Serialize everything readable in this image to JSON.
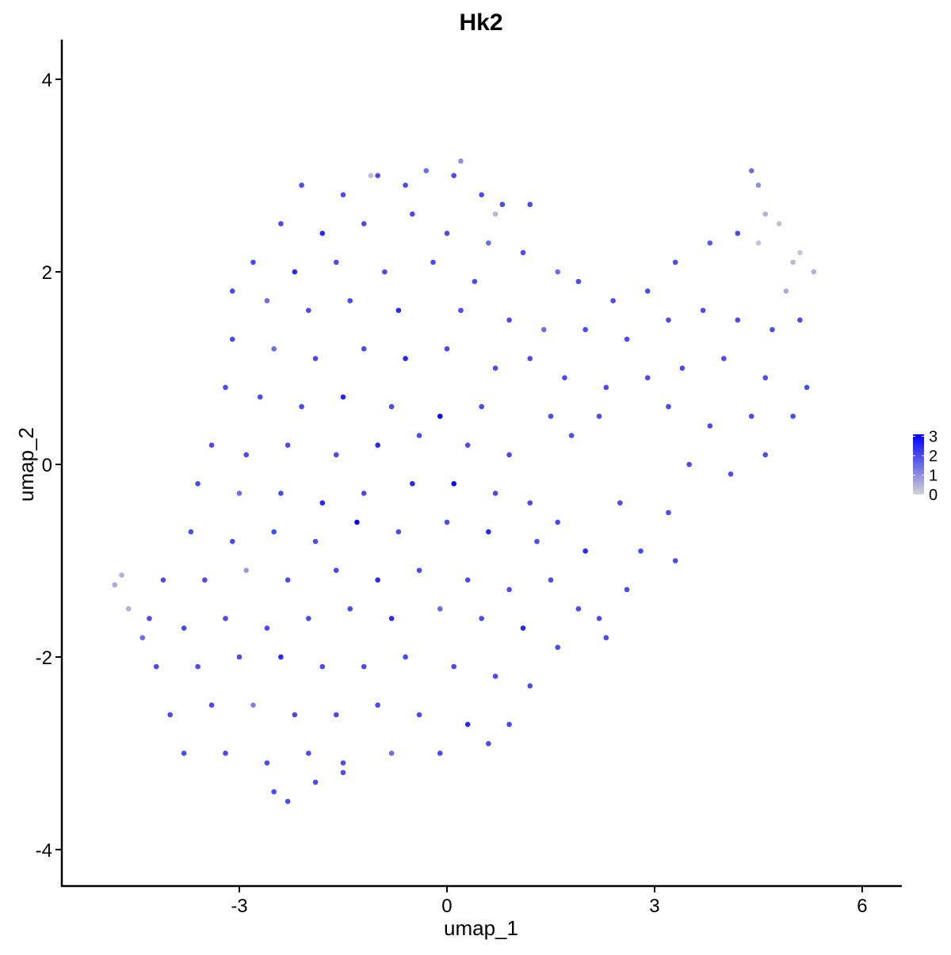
{
  "chart_data": {
    "type": "scatter",
    "title": "Hk2",
    "x_label": "umap_1",
    "y_label": "umap_2",
    "xlim": [
      -5.565,
      6.573
    ],
    "xticks": [
      -3,
      0,
      3,
      6
    ],
    "ylim": [
      -4.379,
      4.412
    ],
    "yticks": [
      -4,
      -2,
      0,
      2,
      4
    ],
    "color_low": "#d3d3d3",
    "color_high": "#0000ff",
    "color_range": [
      0,
      3.1
    ],
    "colorbar_ticks": [
      0,
      1,
      2,
      3
    ],
    "x": [
      -2.1,
      -1.5,
      -1.0,
      -0.6,
      -0.3,
      0.1,
      0.2,
      0.5,
      0.8,
      1.2,
      -1.1,
      0.7,
      -2.4,
      -1.8,
      -1.2,
      -0.5,
      0,
      0.6,
      1.1,
      -2.8,
      -2.2,
      -1.6,
      -0.9,
      -0.2,
      0.4,
      1.6,
      -3.1,
      -2.6,
      -2.0,
      -1.4,
      -0.7,
      0.2,
      0.9,
      1.4,
      -3.1,
      -2.5,
      -1.9,
      -1.2,
      -0.6,
      0,
      0.7,
      1.2,
      -3.2,
      -2.7,
      -2.1,
      -1.5,
      -0.8,
      -0.1,
      0.5,
      -3.4,
      -2.9,
      -2.3,
      -1.6,
      -1.0,
      -0.4,
      0.3,
      0.9,
      -3.6,
      -3.0,
      -2.4,
      -1.8,
      -1.2,
      -0.5,
      0.1,
      0.7,
      1.2,
      -3.7,
      -3.1,
      -2.5,
      -1.9,
      -1.3,
      -0.7,
      0,
      0.6,
      1.3,
      -4.1,
      -3.5,
      -2.9,
      -2.3,
      -1.6,
      -1.0,
      -0.4,
      0.3,
      0.9,
      1.5,
      -4.3,
      -3.8,
      -3.2,
      -2.6,
      -2.0,
      -1.4,
      -0.8,
      -0.1,
      0.5,
      1.1,
      1.6,
      -4.2,
      -3.6,
      -3.0,
      -2.4,
      -1.8,
      -1.2,
      -0.6,
      0.1,
      0.7,
      1.2,
      -4.0,
      -3.4,
      -2.8,
      -2.2,
      -1.6,
      -1.0,
      -0.4,
      0.3,
      0.9,
      -3.8,
      -3.2,
      -2.6,
      -2.0,
      -1.5,
      -0.8,
      -0.1,
      0.6,
      -2.5,
      -2.3,
      -1.9,
      -1.5,
      -4.8,
      -4.7,
      -4.6,
      -4.4,
      1.9,
      2.4,
      2.9,
      3.3,
      3.8,
      4.2,
      4.6,
      4.5,
      4.8,
      5.1,
      5.3,
      4.9,
      4.5,
      5.0,
      4.4,
      2.0,
      2.6,
      3.2,
      3.7,
      4.2,
      4.7,
      5.1,
      1.7,
      2.3,
      2.9,
      3.4,
      4.0,
      4.6,
      5.2,
      2.2,
      3.2,
      3.8,
      4.4,
      5.0,
      3.5,
      4.1,
      4.6,
      1.8,
      3.2,
      2.8,
      3.3,
      2.6,
      2.2,
      2.3,
      1.9,
      1.6,
      2.0,
      2.5,
      1.5
    ],
    "y": [
      2.9,
      2.8,
      3.0,
      2.9,
      3.05,
      3.0,
      3.15,
      2.8,
      2.7,
      2.7,
      3.0,
      2.6,
      2.5,
      2.4,
      2.5,
      2.6,
      2.4,
      2.3,
      2.2,
      2.1,
      2.0,
      2.1,
      2.0,
      2.1,
      1.9,
      2.0,
      1.8,
      1.7,
      1.6,
      1.7,
      1.6,
      1.6,
      1.5,
      1.4,
      1.3,
      1.2,
      1.1,
      1.2,
      1.1,
      1.2,
      1.0,
      1.1,
      0.8,
      0.7,
      0.6,
      0.7,
      0.6,
      0.5,
      0.6,
      0.2,
      0.1,
      0.2,
      0.1,
      0.2,
      0.3,
      0.2,
      0.1,
      -0.2,
      -0.3,
      -0.3,
      -0.4,
      -0.3,
      -0.2,
      -0.2,
      -0.3,
      -0.4,
      -0.7,
      -0.8,
      -0.7,
      -0.8,
      -0.6,
      -0.7,
      -0.6,
      -0.7,
      -0.8,
      -1.2,
      -1.2,
      -1.1,
      -1.2,
      -1.1,
      -1.2,
      -1.1,
      -1.2,
      -1.3,
      -1.2,
      -1.6,
      -1.7,
      -1.6,
      -1.7,
      -1.6,
      -1.5,
      -1.6,
      -1.5,
      -1.6,
      -1.7,
      -1.9,
      -2.1,
      -2.1,
      -2.0,
      -2.0,
      -2.1,
      -2.1,
      -2.0,
      -2.1,
      -2.2,
      -2.3,
      -2.6,
      -2.5,
      -2.5,
      -2.6,
      -2.6,
      -2.5,
      -2.6,
      -2.7,
      -2.7,
      -3.0,
      -3.0,
      -3.1,
      -3.0,
      -3.1,
      -3.0,
      -3.0,
      -2.9,
      -3.4,
      -3.5,
      -3.3,
      -3.2,
      -1.25,
      -1.15,
      -1.5,
      -1.8,
      1.9,
      1.7,
      1.8,
      2.1,
      2.3,
      2.4,
      2.6,
      2.9,
      2.5,
      2.2,
      2.0,
      1.8,
      2.3,
      2.1,
      3.05,
      1.4,
      1.3,
      1.5,
      1.6,
      1.5,
      1.4,
      1.5,
      0.9,
      0.8,
      0.9,
      1.0,
      1.1,
      0.9,
      0.8,
      0.5,
      0.6,
      0.4,
      0.5,
      0.5,
      0.0,
      -0.1,
      0.1,
      0.3,
      -0.5,
      -0.9,
      -1.0,
      -1.3,
      -1.6,
      -1.8,
      -1.5,
      -0.6,
      -0.9,
      -0.4,
      0.5
    ],
    "expression": [
      2,
      2,
      2,
      2,
      1.5,
      2,
      1,
      2,
      2,
      2,
      0.3,
      0.4,
      2,
      2.5,
      2,
      2,
      2,
      1.5,
      2,
      2,
      2.5,
      2,
      2,
      2,
      2,
      1.5,
      2,
      1.5,
      2,
      2,
      2.5,
      2,
      2,
      1.5,
      2,
      1.5,
      2,
      2,
      2.5,
      2,
      2,
      2,
      2,
      2,
      2,
      2.5,
      2,
      3,
      2,
      2,
      2,
      2,
      2,
      2.5,
      2,
      2,
      2,
      2,
      1.5,
      2,
      2.5,
      2,
      2.5,
      3,
      2,
      2,
      2,
      2,
      2,
      2,
      3,
      2,
      2,
      2.5,
      2,
      2,
      2,
      0.8,
      2,
      2,
      2.5,
      2,
      2,
      2,
      2,
      2,
      2,
      2,
      2,
      2,
      2,
      2.5,
      1.5,
      2,
      2.5,
      2,
      2,
      2,
      2,
      2.5,
      2,
      2,
      2,
      2,
      2,
      2,
      2,
      2,
      1.2,
      2,
      2,
      2,
      2,
      2.5,
      2,
      2,
      2,
      2,
      2,
      2,
      1.5,
      2,
      2,
      2,
      2,
      2,
      2,
      0.6,
      0.5,
      0.5,
      1.5,
      2,
      2,
      2,
      2,
      1.8,
      2,
      0.5,
      1,
      0.3,
      0.2,
      0.5,
      0.6,
      0.2,
      0.4,
      1.5,
      2,
      2,
      2,
      2,
      2,
      2,
      2,
      2,
      2,
      2,
      2,
      2,
      2,
      2,
      2,
      2,
      2,
      2,
      2,
      2,
      2,
      2,
      2,
      2,
      2,
      2,
      2,
      2,
      2,
      2,
      2,
      2.5,
      2,
      2
    ]
  }
}
